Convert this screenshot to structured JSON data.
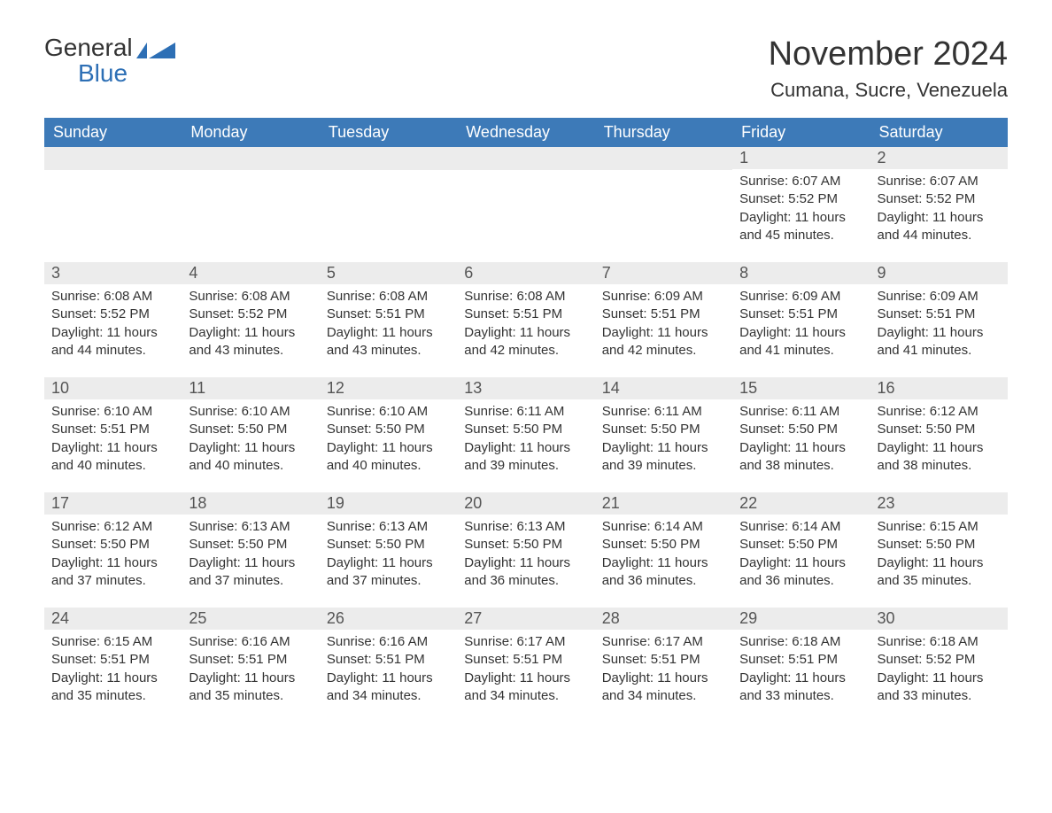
{
  "logo": {
    "word1": "General",
    "word2": "Blue"
  },
  "title": "November 2024",
  "location": "Cumana, Sucre, Venezuela",
  "colors": {
    "header_bg": "#3d7ab8",
    "header_text": "#ffffff",
    "daynum_bg": "#ececec",
    "cell_border": "#3d7ab8",
    "text": "#333333",
    "logo_blue": "#2d6fb5",
    "page_bg": "#ffffff"
  },
  "typography": {
    "title_fontsize": 38,
    "location_fontsize": 22,
    "header_fontsize": 18,
    "daynum_fontsize": 18,
    "body_fontsize": 15
  },
  "weekdays": [
    "Sunday",
    "Monday",
    "Tuesday",
    "Wednesday",
    "Thursday",
    "Friday",
    "Saturday"
  ],
  "weeks": [
    [
      null,
      null,
      null,
      null,
      null,
      {
        "day": "1",
        "sunrise": "Sunrise: 6:07 AM",
        "sunset": "Sunset: 5:52 PM",
        "daylight": "Daylight: 11 hours and 45 minutes."
      },
      {
        "day": "2",
        "sunrise": "Sunrise: 6:07 AM",
        "sunset": "Sunset: 5:52 PM",
        "daylight": "Daylight: 11 hours and 44 minutes."
      }
    ],
    [
      {
        "day": "3",
        "sunrise": "Sunrise: 6:08 AM",
        "sunset": "Sunset: 5:52 PM",
        "daylight": "Daylight: 11 hours and 44 minutes."
      },
      {
        "day": "4",
        "sunrise": "Sunrise: 6:08 AM",
        "sunset": "Sunset: 5:52 PM",
        "daylight": "Daylight: 11 hours and 43 minutes."
      },
      {
        "day": "5",
        "sunrise": "Sunrise: 6:08 AM",
        "sunset": "Sunset: 5:51 PM",
        "daylight": "Daylight: 11 hours and 43 minutes."
      },
      {
        "day": "6",
        "sunrise": "Sunrise: 6:08 AM",
        "sunset": "Sunset: 5:51 PM",
        "daylight": "Daylight: 11 hours and 42 minutes."
      },
      {
        "day": "7",
        "sunrise": "Sunrise: 6:09 AM",
        "sunset": "Sunset: 5:51 PM",
        "daylight": "Daylight: 11 hours and 42 minutes."
      },
      {
        "day": "8",
        "sunrise": "Sunrise: 6:09 AM",
        "sunset": "Sunset: 5:51 PM",
        "daylight": "Daylight: 11 hours and 41 minutes."
      },
      {
        "day": "9",
        "sunrise": "Sunrise: 6:09 AM",
        "sunset": "Sunset: 5:51 PM",
        "daylight": "Daylight: 11 hours and 41 minutes."
      }
    ],
    [
      {
        "day": "10",
        "sunrise": "Sunrise: 6:10 AM",
        "sunset": "Sunset: 5:51 PM",
        "daylight": "Daylight: 11 hours and 40 minutes."
      },
      {
        "day": "11",
        "sunrise": "Sunrise: 6:10 AM",
        "sunset": "Sunset: 5:50 PM",
        "daylight": "Daylight: 11 hours and 40 minutes."
      },
      {
        "day": "12",
        "sunrise": "Sunrise: 6:10 AM",
        "sunset": "Sunset: 5:50 PM",
        "daylight": "Daylight: 11 hours and 40 minutes."
      },
      {
        "day": "13",
        "sunrise": "Sunrise: 6:11 AM",
        "sunset": "Sunset: 5:50 PM",
        "daylight": "Daylight: 11 hours and 39 minutes."
      },
      {
        "day": "14",
        "sunrise": "Sunrise: 6:11 AM",
        "sunset": "Sunset: 5:50 PM",
        "daylight": "Daylight: 11 hours and 39 minutes."
      },
      {
        "day": "15",
        "sunrise": "Sunrise: 6:11 AM",
        "sunset": "Sunset: 5:50 PM",
        "daylight": "Daylight: 11 hours and 38 minutes."
      },
      {
        "day": "16",
        "sunrise": "Sunrise: 6:12 AM",
        "sunset": "Sunset: 5:50 PM",
        "daylight": "Daylight: 11 hours and 38 minutes."
      }
    ],
    [
      {
        "day": "17",
        "sunrise": "Sunrise: 6:12 AM",
        "sunset": "Sunset: 5:50 PM",
        "daylight": "Daylight: 11 hours and 37 minutes."
      },
      {
        "day": "18",
        "sunrise": "Sunrise: 6:13 AM",
        "sunset": "Sunset: 5:50 PM",
        "daylight": "Daylight: 11 hours and 37 minutes."
      },
      {
        "day": "19",
        "sunrise": "Sunrise: 6:13 AM",
        "sunset": "Sunset: 5:50 PM",
        "daylight": "Daylight: 11 hours and 37 minutes."
      },
      {
        "day": "20",
        "sunrise": "Sunrise: 6:13 AM",
        "sunset": "Sunset: 5:50 PM",
        "daylight": "Daylight: 11 hours and 36 minutes."
      },
      {
        "day": "21",
        "sunrise": "Sunrise: 6:14 AM",
        "sunset": "Sunset: 5:50 PM",
        "daylight": "Daylight: 11 hours and 36 minutes."
      },
      {
        "day": "22",
        "sunrise": "Sunrise: 6:14 AM",
        "sunset": "Sunset: 5:50 PM",
        "daylight": "Daylight: 11 hours and 36 minutes."
      },
      {
        "day": "23",
        "sunrise": "Sunrise: 6:15 AM",
        "sunset": "Sunset: 5:50 PM",
        "daylight": "Daylight: 11 hours and 35 minutes."
      }
    ],
    [
      {
        "day": "24",
        "sunrise": "Sunrise: 6:15 AM",
        "sunset": "Sunset: 5:51 PM",
        "daylight": "Daylight: 11 hours and 35 minutes."
      },
      {
        "day": "25",
        "sunrise": "Sunrise: 6:16 AM",
        "sunset": "Sunset: 5:51 PM",
        "daylight": "Daylight: 11 hours and 35 minutes."
      },
      {
        "day": "26",
        "sunrise": "Sunrise: 6:16 AM",
        "sunset": "Sunset: 5:51 PM",
        "daylight": "Daylight: 11 hours and 34 minutes."
      },
      {
        "day": "27",
        "sunrise": "Sunrise: 6:17 AM",
        "sunset": "Sunset: 5:51 PM",
        "daylight": "Daylight: 11 hours and 34 minutes."
      },
      {
        "day": "28",
        "sunrise": "Sunrise: 6:17 AM",
        "sunset": "Sunset: 5:51 PM",
        "daylight": "Daylight: 11 hours and 34 minutes."
      },
      {
        "day": "29",
        "sunrise": "Sunrise: 6:18 AM",
        "sunset": "Sunset: 5:51 PM",
        "daylight": "Daylight: 11 hours and 33 minutes."
      },
      {
        "day": "30",
        "sunrise": "Sunrise: 6:18 AM",
        "sunset": "Sunset: 5:52 PM",
        "daylight": "Daylight: 11 hours and 33 minutes."
      }
    ]
  ]
}
